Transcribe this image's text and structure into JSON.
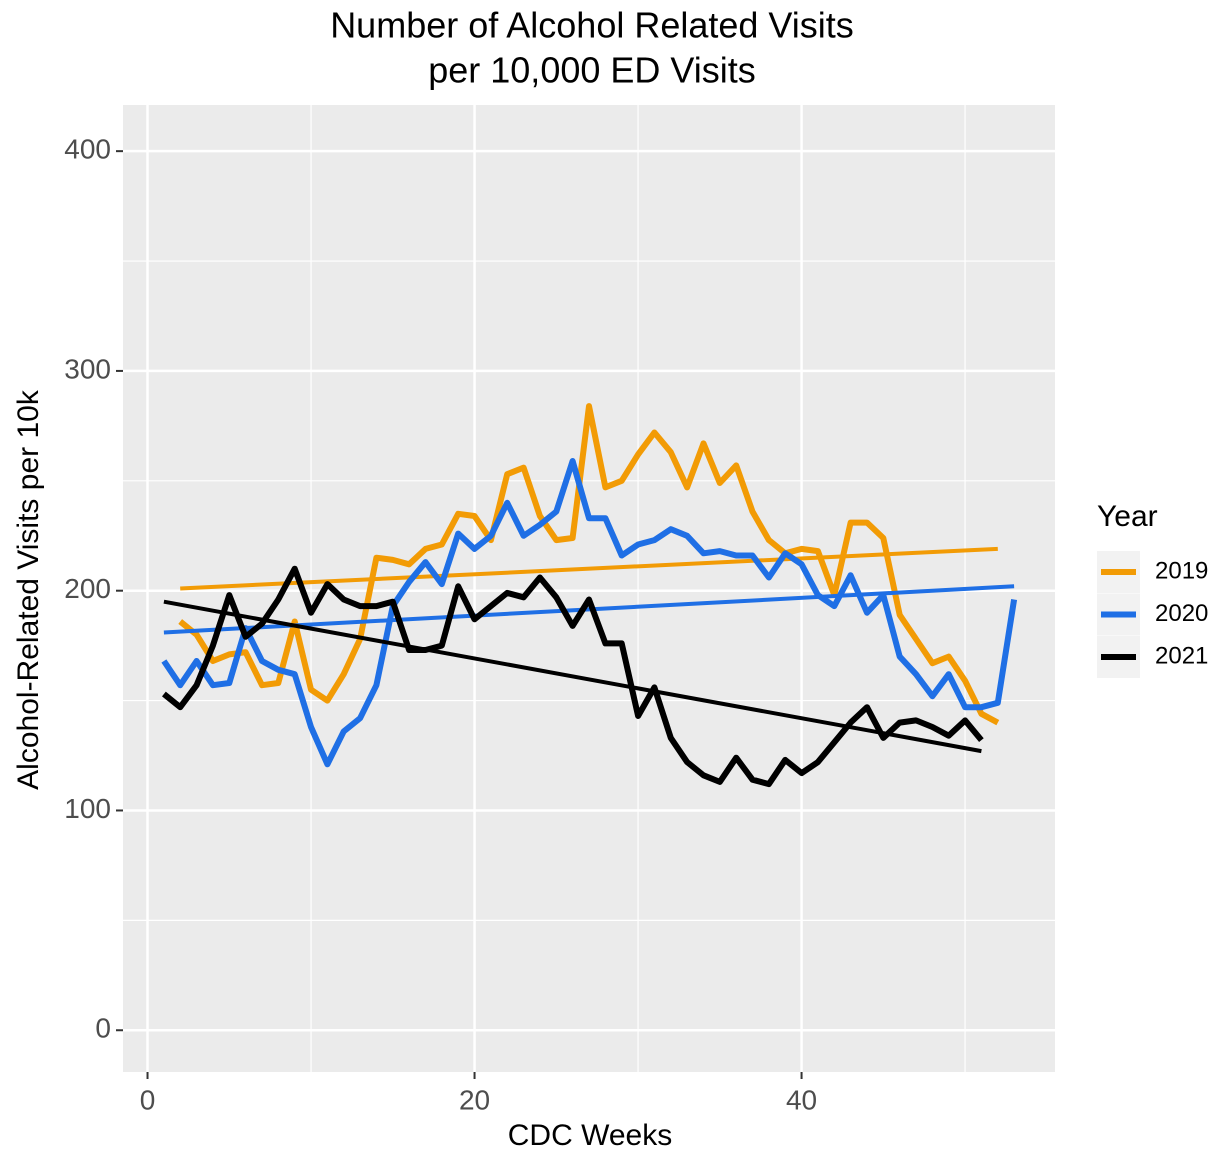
{
  "chart_data": {
    "type": "line",
    "title": [
      "Number of Alcohol Related Visits",
      "per 10,000 ED Visits"
    ],
    "x_label": "CDC Weeks",
    "y_label": "Alcohol-Related Visits per 10k",
    "legend_title": "Year",
    "legend_position": "right",
    "grid": true,
    "xlim": [
      -1.5,
      55.5
    ],
    "ylim": [
      -19,
      421
    ],
    "xticks": [
      0,
      20,
      40
    ],
    "yticks": [
      0,
      100,
      200,
      300,
      400
    ],
    "minor_xticks": [
      10,
      30,
      50
    ],
    "minor_yticks": [
      50,
      150,
      250,
      350
    ],
    "series": [
      {
        "name": "2019",
        "color": "#f29b05",
        "x": [
          2,
          3,
          4,
          5,
          6,
          7,
          8,
          9,
          10,
          11,
          12,
          13,
          14,
          15,
          16,
          17,
          18,
          19,
          20,
          21,
          22,
          23,
          24,
          25,
          26,
          27,
          28,
          29,
          30,
          31,
          32,
          33,
          34,
          35,
          36,
          37,
          38,
          39,
          40,
          41,
          42,
          43,
          44,
          45,
          46,
          47,
          48,
          49,
          50,
          51,
          52
        ],
        "values": [
          186,
          180,
          168,
          171,
          172,
          157,
          158,
          186,
          155,
          150,
          162,
          178,
          215,
          214,
          212,
          219,
          221,
          235,
          234,
          223,
          253,
          256,
          234,
          223,
          224,
          284,
          247,
          250,
          262,
          272,
          263,
          247,
          267,
          249,
          257,
          236,
          223,
          217,
          219,
          218,
          198,
          231,
          231,
          224,
          189,
          178,
          167,
          170,
          159,
          144,
          140
        ],
        "trend_x": [
          2,
          52
        ],
        "trend_values": [
          201,
          219
        ]
      },
      {
        "name": "2020",
        "color": "#1f6fe5",
        "x": [
          1,
          2,
          3,
          4,
          5,
          6,
          7,
          8,
          9,
          10,
          11,
          12,
          13,
          14,
          15,
          16,
          17,
          18,
          19,
          20,
          21,
          22,
          23,
          24,
          25,
          26,
          27,
          28,
          29,
          30,
          31,
          32,
          33,
          34,
          35,
          36,
          37,
          38,
          39,
          40,
          41,
          42,
          43,
          44,
          45,
          46,
          47,
          48,
          49,
          50,
          51,
          52,
          53
        ],
        "values": [
          168,
          157,
          168,
          157,
          158,
          183,
          168,
          164,
          162,
          138,
          121,
          136,
          142,
          157,
          193,
          204,
          213,
          203,
          226,
          219,
          225,
          240,
          225,
          230,
          236,
          259,
          233,
          233,
          216,
          221,
          223,
          228,
          225,
          217,
          218,
          216,
          216,
          206,
          217,
          212,
          198,
          193,
          207,
          190,
          198,
          170,
          162,
          152,
          162,
          147,
          147,
          149,
          196
        ],
        "trend_x": [
          1,
          53
        ],
        "trend_values": [
          181,
          202
        ]
      },
      {
        "name": "2021",
        "color": "#000000",
        "x": [
          1,
          2,
          3,
          4,
          5,
          6,
          7,
          8,
          9,
          10,
          11,
          12,
          13,
          14,
          15,
          16,
          17,
          18,
          19,
          20,
          21,
          22,
          23,
          24,
          25,
          26,
          27,
          28,
          29,
          30,
          31,
          32,
          33,
          34,
          35,
          36,
          37,
          38,
          39,
          40,
          41,
          42,
          43,
          44,
          45,
          46,
          47,
          48,
          49,
          50,
          51
        ],
        "values": [
          153,
          147,
          157,
          175,
          198,
          179,
          185,
          196,
          210,
          190,
          203,
          196,
          193,
          193,
          195,
          173,
          173,
          175,
          202,
          187,
          193,
          199,
          197,
          206,
          197,
          184,
          196,
          176,
          176,
          143,
          156,
          133,
          122,
          116,
          113,
          124,
          114,
          112,
          123,
          117,
          122,
          131,
          140,
          147,
          133,
          140,
          141,
          138,
          134,
          141,
          132
        ],
        "trend_x": [
          1,
          51
        ],
        "trend_values": [
          195,
          127
        ]
      }
    ]
  }
}
